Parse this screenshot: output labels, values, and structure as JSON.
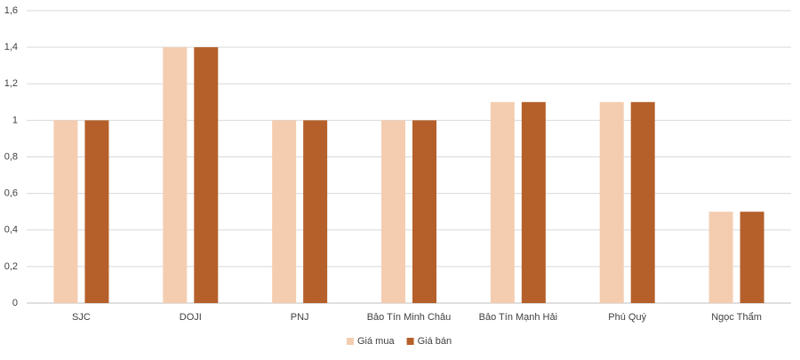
{
  "chart_data": {
    "type": "bar",
    "categories": [
      "SJC",
      "DOJI",
      "PNJ",
      "Bảo Tín Minh Châu",
      "Bảo Tín Mạnh Hải",
      "Phú Quý",
      "Ngọc Thẩm"
    ],
    "series": [
      {
        "name": "Giá mua",
        "color": "#f4cdb1",
        "values": [
          1,
          1.4,
          1,
          1,
          1.1,
          1.1,
          0.5
        ]
      },
      {
        "name": "Giá bán",
        "color": "#b5602a",
        "values": [
          1,
          1.4,
          1,
          1,
          1.1,
          1.1,
          0.5
        ]
      }
    ],
    "ylim": [
      0,
      1.6
    ],
    "yticks": [
      0,
      {
        "value": 0.2,
        "label": "0,2"
      },
      {
        "value": 0.4,
        "label": "0,4"
      },
      {
        "value": 0.6,
        "label": "0,6"
      },
      {
        "value": 0.8,
        "label": "0,8"
      },
      1,
      {
        "value": 1.2,
        "label": "1,2"
      },
      {
        "value": 1.4,
        "label": "1,4"
      },
      {
        "value": 1.6,
        "label": "1,6"
      }
    ],
    "grid": true,
    "legend": "bottom"
  }
}
